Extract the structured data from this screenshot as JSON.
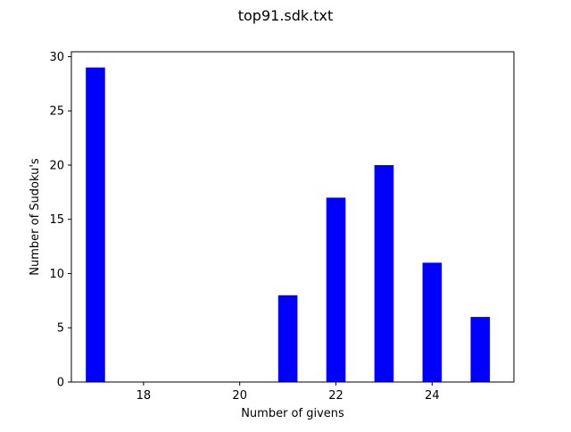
{
  "chart_data": {
    "type": "bar",
    "title": "top91.sdk.txt",
    "xlabel": "Number of givens",
    "ylabel": "Number of Sudoku's",
    "x": [
      17,
      21,
      22,
      23,
      24,
      25
    ],
    "values": [
      29,
      8,
      17,
      20,
      11,
      6
    ],
    "bar_width": 0.4,
    "xlim": [
      16.5,
      25.7
    ],
    "ylim": [
      0,
      30.45
    ],
    "xticks": [
      18,
      20,
      22,
      24
    ],
    "yticks": [
      0,
      5,
      10,
      15,
      20,
      25,
      30
    ],
    "bar_color": "#0000ff",
    "grid": false,
    "legend": "none"
  }
}
